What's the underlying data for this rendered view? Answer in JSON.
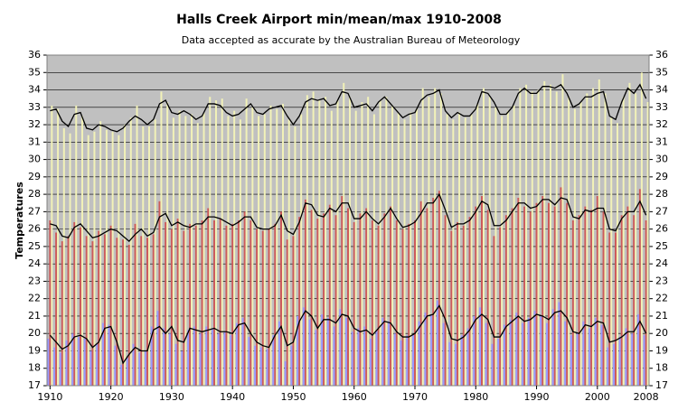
{
  "chart_data": {
    "type": "bar",
    "title": "Halls Creek Airport min/mean/max 1910-2008",
    "subtitle": "Data accepted as accurate by the Australian Bureau of Meteorology",
    "ylabel": "Temperatures",
    "categories": [
      "1910",
      null,
      null,
      null,
      null,
      null,
      null,
      null,
      null,
      null,
      "1920",
      null,
      null,
      null,
      null,
      null,
      null,
      null,
      null,
      null,
      "1930",
      null,
      null,
      null,
      null,
      null,
      null,
      null,
      null,
      null,
      "1940",
      null,
      null,
      null,
      null,
      null,
      null,
      null,
      null,
      null,
      "1950",
      null,
      null,
      null,
      null,
      null,
      null,
      null,
      null,
      null,
      "1960",
      null,
      null,
      null,
      null,
      null,
      null,
      null,
      null,
      null,
      "1970",
      null,
      null,
      null,
      null,
      null,
      null,
      null,
      null,
      null,
      "1980",
      null,
      null,
      null,
      null,
      null,
      null,
      null,
      null,
      null,
      "1990",
      null,
      null,
      null,
      null,
      null,
      null,
      null,
      null,
      null,
      "2000",
      null,
      null,
      null,
      null,
      null,
      null,
      null,
      "2008"
    ],
    "ylim": [
      17,
      36
    ],
    "yticks": [
      17,
      18,
      19,
      20,
      21,
      22,
      23,
      24,
      25,
      26,
      27,
      28,
      29,
      30,
      31,
      32,
      33,
      34,
      35,
      36
    ],
    "y2lim": [
      17,
      36
    ],
    "y2ticks": [
      17,
      18,
      19,
      20,
      21,
      22,
      23,
      24,
      25,
      26,
      27,
      28,
      29,
      30,
      31,
      32,
      33,
      34,
      35,
      36
    ],
    "grid": true,
    "background": "#c0c0c0",
    "series": [
      {
        "type": "bar",
        "color": "#9999ff",
        "values": [
          19.7,
          19.2,
          18.9,
          19.6,
          20.0,
          19.8,
          19.7,
          19.0,
          19.4,
          20.6,
          20.5,
          19.3,
          18.2,
          18.6,
          19.4,
          18.9,
          19.0,
          20.4,
          21.3,
          20.3,
          20.0,
          19.4,
          19.0,
          20.2,
          20.4,
          20.0,
          20.4,
          20.3,
          20.0,
          20.1,
          19.9,
          20.6,
          20.9,
          19.8,
          19.3,
          19.2,
          19.1,
          19.9,
          20.7,
          18.4,
          19.3,
          21.0,
          21.5,
          20.8,
          20.2,
          21.1,
          20.9,
          20.4,
          21.4,
          20.9,
          20.1,
          20.3,
          20.4,
          19.7,
          20.2,
          20.9,
          20.7,
          20.0,
          19.6,
          19.9,
          19.9,
          20.7,
          21.2,
          21.1,
          21.9,
          20.6,
          19.5,
          19.4,
          19.9,
          20.3,
          21.0,
          21.5,
          20.6,
          19.4,
          19.7,
          20.5,
          20.8,
          21.2,
          20.6,
          20.9,
          21.3,
          21.0,
          20.6,
          21.4,
          21.8,
          20.7,
          19.9,
          20.0,
          20.7,
          20.3,
          20.9,
          20.5,
          19.2,
          19.4,
          19.8,
          20.3,
          20.0,
          21.1,
          19.9
        ]
      },
      {
        "type": "bar",
        "color": "#cc5a5a",
        "values": [
          26.5,
          25.8,
          25.3,
          25.6,
          26.4,
          26.1,
          25.6,
          25.3,
          25.9,
          25.7,
          26.2,
          25.5,
          25.4,
          25.1,
          26.3,
          25.6,
          25.5,
          25.7,
          27.6,
          26.4,
          26.0,
          26.6,
          25.9,
          26.3,
          26.2,
          26.5,
          27.2,
          26.5,
          26.6,
          26.2,
          26.3,
          26.5,
          27.0,
          26.5,
          26.0,
          25.9,
          26.0,
          26.3,
          27.0,
          25.4,
          25.6,
          26.7,
          27.7,
          27.1,
          26.6,
          26.9,
          27.4,
          26.8,
          27.9,
          27.2,
          26.4,
          26.9,
          27.2,
          26.5,
          26.2,
          26.9,
          27.3,
          26.5,
          26.0,
          26.3,
          26.5,
          27.6,
          27.2,
          27.8,
          28.2,
          26.8,
          25.9,
          26.4,
          26.2,
          26.7,
          27.3,
          27.9,
          27.1,
          25.6,
          26.1,
          26.8,
          27.2,
          27.8,
          27.3,
          27.0,
          27.5,
          27.9,
          27.5,
          27.3,
          28.4,
          27.5,
          26.5,
          26.8,
          27.3,
          27.1,
          27.9,
          27.0,
          25.8,
          25.8,
          26.8,
          27.3,
          26.8,
          28.3,
          26.5
        ]
      },
      {
        "type": "bar",
        "color": "#f2f2b8",
        "values": [
          33.1,
          32.9,
          31.8,
          31.5,
          33.1,
          32.5,
          31.4,
          31.6,
          32.2,
          31.7,
          31.6,
          31.4,
          32.0,
          32.4,
          33.1,
          31.9,
          31.9,
          32.3,
          33.9,
          33.3,
          32.4,
          32.8,
          32.5,
          32.6,
          32.1,
          32.7,
          33.6,
          33.4,
          33.5,
          32.5,
          32.8,
          32.3,
          33.5,
          33.0,
          32.5,
          32.6,
          33.1,
          32.9,
          33.2,
          32.3,
          31.9,
          32.6,
          33.7,
          33.9,
          33.4,
          33.6,
          32.8,
          33.4,
          34.4,
          33.6,
          32.8,
          33.3,
          33.6,
          32.6,
          33.4,
          33.6,
          33.1,
          32.7,
          32.3,
          32.7,
          32.9,
          34.1,
          33.6,
          34.1,
          33.8,
          32.6,
          32.3,
          32.7,
          32.4,
          32.6,
          33.2,
          34.1,
          33.6,
          33.0,
          32.5,
          32.8,
          33.1,
          34.1,
          34.3,
          33.9,
          34.0,
          34.5,
          34.3,
          33.9,
          34.9,
          33.6,
          32.9,
          33.3,
          33.8,
          34.1,
          34.6,
          33.8,
          32.4,
          32.1,
          33.6,
          34.4,
          33.8,
          35.0,
          33.3
        ]
      },
      {
        "type": "line",
        "color": "#000000",
        "values": [
          19.9,
          19.5,
          19.1,
          19.3,
          19.8,
          19.9,
          19.7,
          19.2,
          19.5,
          20.3,
          20.4,
          19.5,
          18.3,
          18.8,
          19.2,
          19.0,
          19.0,
          20.2,
          20.4,
          20.0,
          20.4,
          19.6,
          19.5,
          20.3,
          20.2,
          20.1,
          20.2,
          20.3,
          20.1,
          20.1,
          20.0,
          20.5,
          20.6,
          20.0,
          19.5,
          19.3,
          19.2,
          19.9,
          20.4,
          19.3,
          19.5,
          20.7,
          21.3,
          21.0,
          20.3,
          20.8,
          20.8,
          20.6,
          21.1,
          21.0,
          20.3,
          20.1,
          20.2,
          19.9,
          20.3,
          20.7,
          20.6,
          20.1,
          19.8,
          19.8,
          20.0,
          20.5,
          21.0,
          21.1,
          21.6,
          20.8,
          19.7,
          19.6,
          19.8,
          20.2,
          20.8,
          21.1,
          20.8,
          19.8,
          19.8,
          20.4,
          20.7,
          21.0,
          20.7,
          20.8,
          21.1,
          21.0,
          20.8,
          21.2,
          21.3,
          20.9,
          20.1,
          20.0,
          20.5,
          20.4,
          20.7,
          20.6,
          19.5,
          19.6,
          19.8,
          20.1,
          20.1,
          20.7,
          20.0
        ]
      },
      {
        "type": "line",
        "color": "#000000",
        "values": [
          26.3,
          26.2,
          25.6,
          25.5,
          26.1,
          26.3,
          25.9,
          25.5,
          25.6,
          25.8,
          26.0,
          25.9,
          25.6,
          25.3,
          25.7,
          26.0,
          25.6,
          25.8,
          26.7,
          26.9,
          26.2,
          26.4,
          26.2,
          26.1,
          26.3,
          26.3,
          26.7,
          26.7,
          26.6,
          26.4,
          26.2,
          26.4,
          26.7,
          26.7,
          26.1,
          26.0,
          26.0,
          26.2,
          26.8,
          25.9,
          25.7,
          26.4,
          27.5,
          27.4,
          26.8,
          26.7,
          27.2,
          27.0,
          27.5,
          27.5,
          26.6,
          26.6,
          27.0,
          26.6,
          26.3,
          26.7,
          27.2,
          26.6,
          26.1,
          26.2,
          26.4,
          26.9,
          27.5,
          27.5,
          28.0,
          27.1,
          26.1,
          26.3,
          26.3,
          26.5,
          27.0,
          27.6,
          27.4,
          26.2,
          26.2,
          26.5,
          27.0,
          27.5,
          27.5,
          27.2,
          27.3,
          27.7,
          27.7,
          27.4,
          27.8,
          27.7,
          26.7,
          26.6,
          27.1,
          27.0,
          27.2,
          27.2,
          26.0,
          25.9,
          26.6,
          27.0,
          27.0,
          27.6,
          26.8
        ]
      },
      {
        "type": "line",
        "color": "#000000",
        "values": [
          32.8,
          32.9,
          32.2,
          31.9,
          32.6,
          32.7,
          31.8,
          31.7,
          32.0,
          31.9,
          31.7,
          31.6,
          31.8,
          32.2,
          32.5,
          32.3,
          32.0,
          32.3,
          33.2,
          33.4,
          32.7,
          32.6,
          32.8,
          32.6,
          32.3,
          32.5,
          33.2,
          33.2,
          33.1,
          32.7,
          32.5,
          32.6,
          32.9,
          33.2,
          32.7,
          32.6,
          32.9,
          33.0,
          33.1,
          32.5,
          32.0,
          32.5,
          33.3,
          33.5,
          33.4,
          33.5,
          33.1,
          33.2,
          33.9,
          33.8,
          33.0,
          33.1,
          33.2,
          32.8,
          33.3,
          33.6,
          33.2,
          32.8,
          32.4,
          32.6,
          32.7,
          33.4,
          33.7,
          33.8,
          34.0,
          32.8,
          32.4,
          32.7,
          32.5,
          32.5,
          32.9,
          33.9,
          33.8,
          33.3,
          32.6,
          32.6,
          33.0,
          33.8,
          34.1,
          33.8,
          33.8,
          34.2,
          34.2,
          34.1,
          34.3,
          33.8,
          33.0,
          33.2,
          33.6,
          33.6,
          33.8,
          33.9,
          32.5,
          32.3,
          33.3,
          34.1,
          33.8,
          34.3,
          33.5
        ]
      }
    ]
  }
}
